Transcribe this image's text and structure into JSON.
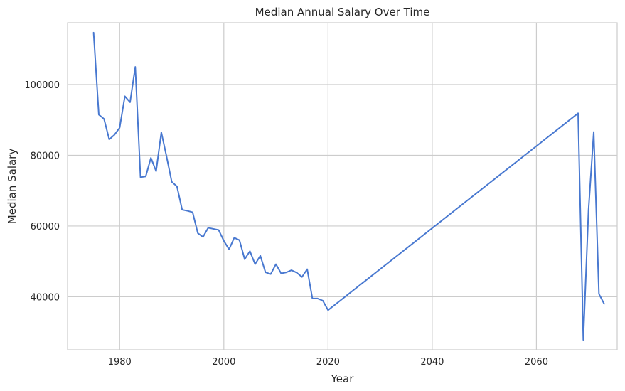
{
  "chart_data": {
    "type": "line",
    "title": "Median Annual Salary Over Time",
    "xlabel": "Year",
    "ylabel": "Median Salary",
    "xlim": [
      1970,
      2075.5
    ],
    "ylim": [
      25000,
      117500
    ],
    "xticks": [
      1980,
      2000,
      2020,
      2040,
      2060
    ],
    "yticks": [
      40000,
      60000,
      80000,
      100000
    ],
    "xtick_labels": [
      "1980",
      "2000",
      "2020",
      "2040",
      "2060"
    ],
    "ytick_labels": [
      "40000",
      "60000",
      "80000",
      "100000"
    ],
    "grid": true,
    "series": [
      {
        "color": "#4878d0",
        "x": [
          1975,
          1976,
          1977,
          1978,
          1979,
          1980,
          1981,
          1982,
          1983,
          1984,
          1985,
          1986,
          1987,
          1988,
          1989,
          1990,
          1991,
          1992,
          1993,
          1994,
          1995,
          1996,
          1997,
          1998,
          1999,
          2000,
          2001,
          2002,
          2003,
          2004,
          2005,
          2006,
          2007,
          2008,
          2009,
          2010,
          2011,
          2012,
          2013,
          2014,
          2015,
          2016,
          2017,
          2018,
          2019,
          2020,
          2068,
          2069,
          2070,
          2071,
          2072,
          2073
        ],
        "y": [
          114700,
          91500,
          90300,
          84500,
          85800,
          87800,
          96700,
          95000,
          105000,
          73800,
          74000,
          79300,
          75500,
          86500,
          79700,
          72500,
          71200,
          64600,
          64300,
          63900,
          58000,
          56900,
          59500,
          59200,
          58900,
          55800,
          53400,
          56700,
          56000,
          50600,
          52900,
          49200,
          51600,
          46900,
          46400,
          49200,
          46600,
          46900,
          47500,
          46800,
          45600,
          47800,
          39500,
          39500,
          38900,
          36200,
          91900,
          27800,
          64500,
          86600,
          40800,
          38000
        ]
      }
    ]
  }
}
